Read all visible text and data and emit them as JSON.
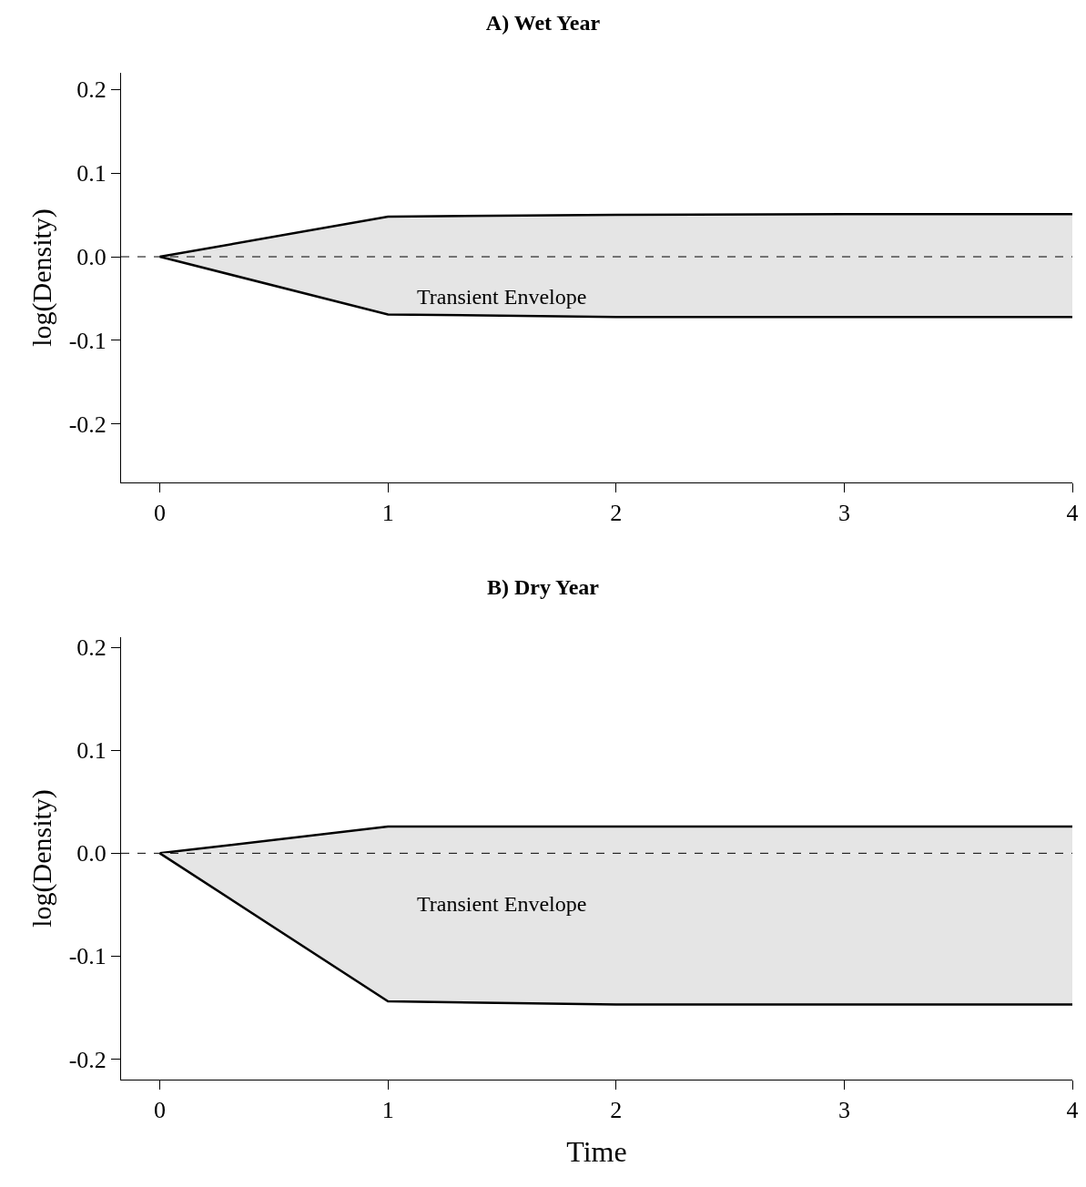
{
  "chart_data": [
    {
      "type": "area",
      "title": "A) Wet Year",
      "ylabel": "log(Density)",
      "x": [
        0,
        1,
        2,
        3,
        4
      ],
      "series": [
        {
          "color": "#e5e5e5",
          "values": [
            0,
            0.048,
            0.05,
            0.051,
            0.051
          ]
        },
        {
          "color": "#e5e5e5",
          "values": [
            0,
            -0.069,
            -0.072,
            -0.072,
            -0.072
          ]
        }
      ],
      "xlim": [
        -0.17,
        4.0
      ],
      "xticks": [
        0,
        1,
        2,
        3,
        4
      ],
      "ylim": [
        -0.27,
        0.22
      ],
      "yticks": [
        {
          "value": -0.2,
          "label": "-0.2"
        },
        {
          "value": -0.1,
          "label": "-0.1"
        },
        {
          "value": 0,
          "label": "0.0"
        },
        {
          "value": 0.1,
          "label": "0.1"
        },
        {
          "value": 0.2,
          "label": "0.2"
        }
      ],
      "ref_lines": [
        {
          "axis": "y",
          "value": 0,
          "line_style": "dashed",
          "color": "#000000"
        }
      ],
      "annotations": [
        "Transient Envelope"
      ],
      "grid": false
    },
    {
      "type": "area",
      "title": "B) Dry Year",
      "xlabel": "Time",
      "ylabel": "log(Density)",
      "x": [
        0,
        1,
        2,
        3,
        4
      ],
      "series": [
        {
          "color": "#e5e5e5",
          "values": [
            0,
            0.026,
            0.026,
            0.026,
            0.026
          ]
        },
        {
          "color": "#e5e5e5",
          "values": [
            0,
            -0.144,
            -0.147,
            -0.147,
            -0.147
          ]
        }
      ],
      "xlim": [
        -0.17,
        4.0
      ],
      "xticks": [
        0,
        1,
        2,
        3,
        4
      ],
      "ylim": [
        -0.22,
        0.21
      ],
      "yticks": [
        {
          "value": -0.2,
          "label": "-0.2"
        },
        {
          "value": -0.1,
          "label": "-0.1"
        },
        {
          "value": 0,
          "label": "0.0"
        },
        {
          "value": 0.1,
          "label": "0.1"
        },
        {
          "value": 0.2,
          "label": "0.2"
        }
      ],
      "ref_lines": [
        {
          "axis": "y",
          "value": 0,
          "line_style": "dashed",
          "color": "#000000"
        }
      ],
      "annotations": [
        "Transient Envelope"
      ],
      "grid": false
    }
  ]
}
